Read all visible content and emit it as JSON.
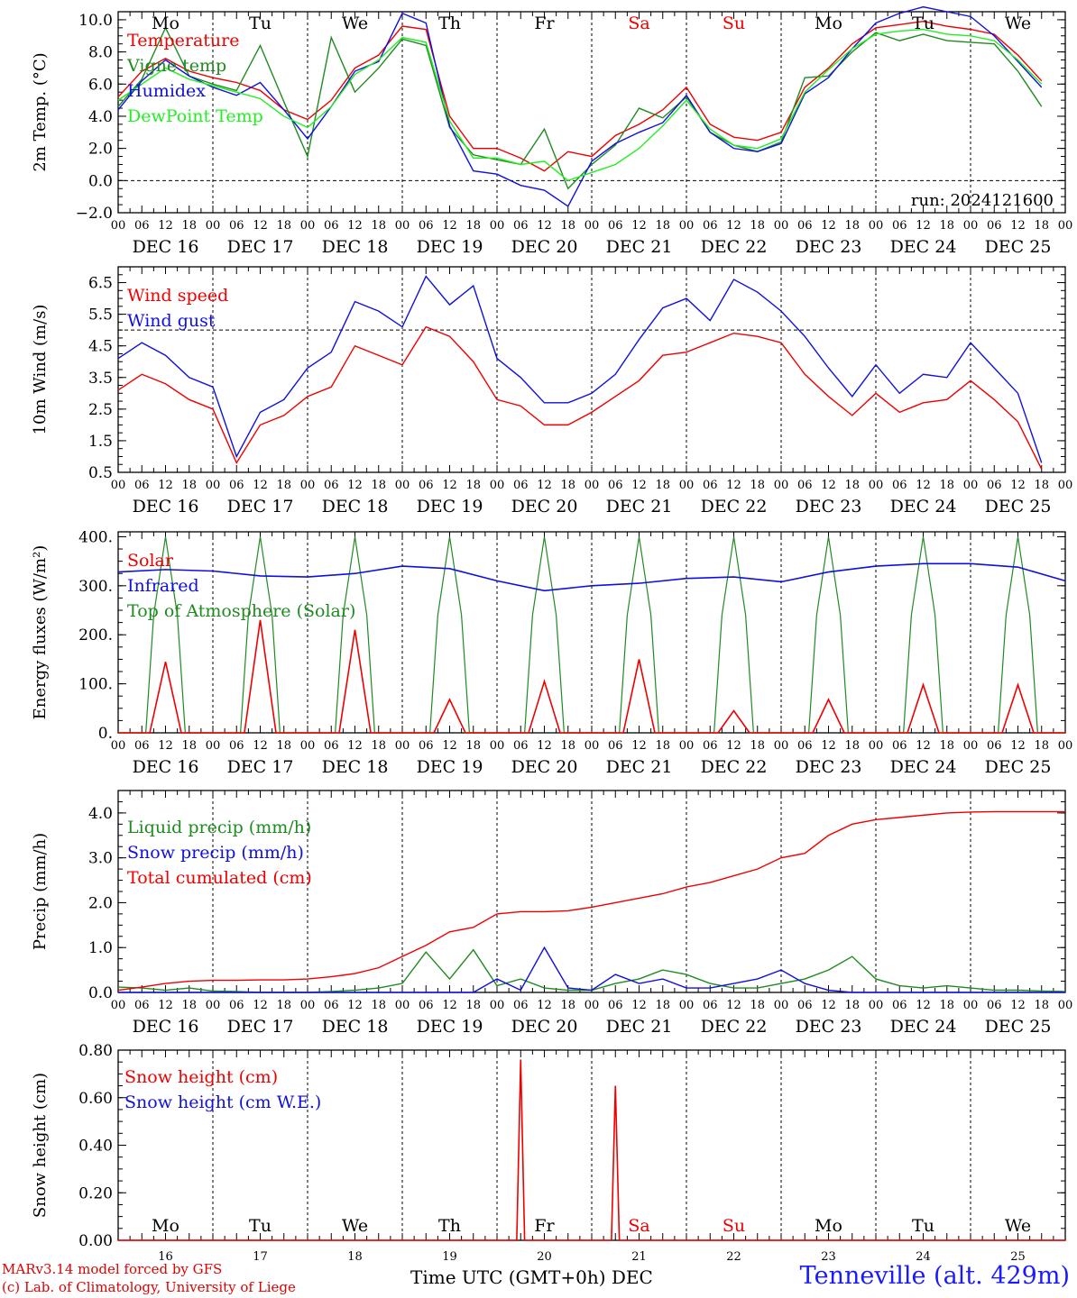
{
  "colors": {
    "red": "#ee0000",
    "green": "#1f8a1f",
    "blue": "#1010dd",
    "light_green": "#22ee22",
    "black": "#000000"
  },
  "dow": [
    "Mo",
    "Tu",
    "We",
    "Th",
    "Fr",
    "Sa",
    "Su",
    "Mo",
    "Tu",
    "We"
  ],
  "dow_colors": [
    "#000000",
    "#000000",
    "#000000",
    "#000000",
    "#000000",
    "#ee0000",
    "#ee0000",
    "#000000",
    "#000000",
    "#000000"
  ],
  "dates": [
    "DEC 16",
    "DEC 17",
    "DEC 18",
    "DEC 19",
    "DEC 20",
    "DEC 21",
    "DEC 22",
    "DEC 23",
    "DEC 24",
    "DEC 25"
  ],
  "day_numbers": [
    "16",
    "17",
    "18",
    "19",
    "20",
    "21",
    "22",
    "23",
    "24",
    "25"
  ],
  "hour_ticks": [
    "00",
    "06",
    "12",
    "18"
  ],
  "footer": {
    "credit_line1": "MARv3.14 model forced by GFS",
    "credit_line2": "(c) Lab. of Climatology, University of Liege",
    "xaxis_title": "Time UTC (GMT+0h) DEC",
    "station": "Tenneville (alt. 429m)"
  },
  "chart_data": [
    {
      "type": "line",
      "ylabel": "2m Temp. (°C)",
      "ylim": [
        -2,
        10.5
      ],
      "yticks": [
        "−2.0",
        "0.0",
        "2.0",
        "4.0",
        "6.0",
        "8.0",
        "10.0"
      ],
      "ytick_values": [
        -2,
        0,
        2,
        4,
        6,
        8,
        10
      ],
      "ref_line": 0,
      "run_label": "run: 2024121600",
      "x_hours": [
        0,
        6,
        12,
        18,
        24,
        30,
        36,
        42,
        48,
        54,
        60,
        66,
        72,
        78,
        84,
        90,
        96,
        102,
        108,
        114,
        120,
        126,
        132,
        138,
        144,
        150,
        156,
        162,
        168,
        174,
        180,
        186,
        192,
        198,
        204,
        210,
        216,
        222,
        228,
        234
      ],
      "series": [
        {
          "name": "Temperature",
          "color": "#ee0000",
          "values": [
            5.2,
            6.8,
            7.6,
            6.8,
            6.4,
            6.1,
            5.6,
            4.4,
            3.8,
            5.0,
            7.0,
            7.8,
            9.6,
            9.4,
            4.0,
            2.0,
            2.0,
            1.4,
            0.6,
            1.8,
            1.5,
            2.8,
            3.5,
            4.4,
            5.8,
            3.5,
            2.7,
            2.5,
            3.0,
            5.8,
            7.0,
            8.5,
            9.5,
            9.7,
            9.9,
            9.6,
            9.4,
            9.1,
            7.8,
            6.2
          ]
        },
        {
          "name": "Vigne temp",
          "color": "#1f8a1f",
          "values": [
            4.6,
            6.3,
            9.5,
            6.5,
            6.0,
            5.6,
            8.4,
            4.9,
            1.5,
            8.9,
            5.5,
            7.0,
            8.8,
            8.4,
            3.3,
            1.6,
            1.3,
            1.0,
            3.2,
            -0.5,
            1.0,
            2.2,
            4.5,
            3.9,
            5.2,
            3.0,
            2.2,
            1.8,
            2.4,
            6.4,
            6.5,
            8.0,
            9.2,
            8.7,
            9.1,
            8.7,
            8.6,
            8.5,
            6.8,
            4.6
          ]
        },
        {
          "name": "Humidex",
          "color": "#1010dd",
          "values": [
            4.4,
            6.2,
            7.5,
            6.5,
            5.8,
            5.3,
            6.1,
            4.4,
            2.6,
            4.6,
            6.8,
            7.4,
            10.4,
            9.8,
            3.4,
            0.6,
            0.4,
            -0.3,
            -0.6,
            -1.6,
            1.2,
            2.3,
            3.0,
            3.6,
            5.3,
            3.0,
            2.0,
            1.8,
            2.3,
            5.4,
            6.4,
            8.2,
            9.8,
            10.4,
            10.8,
            10.5,
            10.2,
            9.0,
            7.4,
            5.8
          ]
        },
        {
          "name": "DewPoint Temp",
          "color": "#22ee22",
          "values": [
            5.0,
            6.0,
            7.0,
            6.3,
            5.9,
            5.5,
            5.1,
            4.0,
            3.3,
            4.6,
            6.6,
            7.5,
            8.9,
            8.6,
            3.7,
            1.4,
            1.4,
            1.0,
            1.2,
            0.0,
            0.5,
            1.0,
            2.0,
            3.4,
            5.0,
            3.2,
            2.2,
            2.0,
            2.6,
            5.5,
            6.9,
            8.2,
            9.1,
            9.3,
            9.4,
            9.1,
            9.0,
            8.7,
            7.5,
            6.0
          ]
        }
      ]
    },
    {
      "type": "line",
      "ylabel": "10m Wind (m/s)",
      "ylim": [
        0.5,
        7
      ],
      "yticks": [
        "0.5",
        "1.5",
        "2.5",
        "3.5",
        "4.5",
        "5.5",
        "6.5"
      ],
      "ytick_values": [
        0.5,
        1.5,
        2.5,
        3.5,
        4.5,
        5.5,
        6.5
      ],
      "ref_line": 5,
      "x_hours": [
        0,
        6,
        12,
        18,
        24,
        30,
        36,
        42,
        48,
        54,
        60,
        66,
        72,
        78,
        84,
        90,
        96,
        102,
        108,
        114,
        120,
        126,
        132,
        138,
        144,
        150,
        156,
        162,
        168,
        174,
        180,
        186,
        192,
        198,
        204,
        210,
        216,
        222,
        228,
        234
      ],
      "series": [
        {
          "name": "Wind speed",
          "color": "#ee0000",
          "values": [
            3.1,
            3.6,
            3.3,
            2.8,
            2.5,
            0.8,
            2.0,
            2.3,
            2.9,
            3.2,
            4.5,
            4.2,
            3.9,
            5.1,
            4.8,
            4.0,
            2.8,
            2.6,
            2.0,
            2.0,
            2.4,
            2.9,
            3.4,
            4.2,
            4.3,
            4.6,
            4.9,
            4.8,
            4.6,
            3.6,
            2.9,
            2.3,
            3.0,
            2.4,
            2.7,
            2.8,
            3.4,
            2.8,
            2.1,
            0.6
          ]
        },
        {
          "name": "Wind gust",
          "color": "#1010dd",
          "values": [
            4.1,
            4.6,
            4.2,
            3.5,
            3.2,
            1.0,
            2.4,
            2.8,
            3.8,
            4.3,
            5.9,
            5.6,
            5.1,
            6.7,
            5.8,
            6.4,
            4.1,
            3.5,
            2.7,
            2.7,
            3.0,
            3.6,
            4.7,
            5.7,
            6.0,
            5.3,
            6.6,
            6.2,
            5.6,
            4.8,
            3.8,
            2.9,
            3.9,
            3.0,
            3.6,
            3.5,
            4.6,
            3.8,
            3.0,
            0.8
          ]
        }
      ]
    },
    {
      "type": "line",
      "ylabel": "Energy fluxes (W/m²)",
      "ylim": [
        0,
        410
      ],
      "yticks": [
        "0.",
        "100.",
        "200.",
        "300.",
        "400."
      ],
      "ytick_values": [
        0,
        100,
        200,
        300,
        400
      ],
      "daily_solar_peak": [
        145,
        230,
        210,
        68,
        105,
        150,
        45,
        68,
        98,
        98
      ],
      "daily_toa_peak": [
        400,
        400,
        400,
        400,
        400,
        400,
        400,
        400,
        400,
        400
      ],
      "x_hours": [
        0,
        12,
        24,
        36,
        48,
        60,
        72,
        84,
        96,
        108,
        120,
        132,
        144,
        156,
        168,
        180,
        192,
        204,
        216,
        228,
        240
      ],
      "series": [
        {
          "name": "Solar",
          "color": "#ee0000"
        },
        {
          "name": "Infrared",
          "color": "#1010dd",
          "values": [
            328,
            333,
            330,
            320,
            318,
            325,
            340,
            335,
            310,
            290,
            300,
            305,
            315,
            318,
            308,
            328,
            340,
            345,
            345,
            338,
            310
          ]
        },
        {
          "name": "Top of Atmosphere (Solar)",
          "color": "#1f8a1f"
        }
      ]
    },
    {
      "type": "line",
      "ylabel": "Precip (mm/h)",
      "ylim": [
        0,
        4.5
      ],
      "yticks": [
        "0.0",
        "1.0",
        "2.0",
        "3.0",
        "4.0"
      ],
      "ytick_values": [
        0,
        1,
        2,
        3,
        4
      ],
      "x_hours": [
        0,
        6,
        12,
        18,
        24,
        30,
        36,
        42,
        48,
        54,
        60,
        66,
        72,
        78,
        84,
        90,
        96,
        102,
        108,
        114,
        120,
        126,
        132,
        138,
        144,
        150,
        156,
        162,
        168,
        174,
        180,
        186,
        192,
        198,
        204,
        210,
        216,
        222,
        228,
        234,
        240
      ],
      "series": [
        {
          "name": "Liquid precip (mm/h)",
          "color": "#1f8a1f",
          "values": [
            0.12,
            0.1,
            0.05,
            0.1,
            0.03,
            0.02,
            0.0,
            0.0,
            0.0,
            0.02,
            0.05,
            0.1,
            0.2,
            0.9,
            0.3,
            0.95,
            0.15,
            0.3,
            0.1,
            0.05,
            0.05,
            0.2,
            0.3,
            0.5,
            0.4,
            0.2,
            0.1,
            0.1,
            0.2,
            0.3,
            0.5,
            0.8,
            0.3,
            0.15,
            0.1,
            0.15,
            0.1,
            0.05,
            0.05,
            0.03,
            0.02
          ]
        },
        {
          "name": "Snow precip (mm/h)",
          "color": "#1010dd",
          "values": [
            0,
            0,
            0,
            0,
            0,
            0,
            0,
            0,
            0,
            0,
            0,
            0,
            0,
            0,
            0,
            0,
            0.3,
            0.05,
            1.0,
            0.1,
            0.05,
            0.4,
            0.2,
            0.3,
            0.1,
            0.1,
            0.2,
            0.3,
            0.5,
            0.2,
            0.05,
            0,
            0,
            0,
            0,
            0,
            0,
            0,
            0,
            0,
            0
          ]
        },
        {
          "name": "Total cumulated (cm)",
          "color": "#ee0000",
          "values": [
            0.05,
            0.12,
            0.2,
            0.25,
            0.27,
            0.27,
            0.28,
            0.28,
            0.3,
            0.35,
            0.42,
            0.55,
            0.8,
            1.05,
            1.35,
            1.45,
            1.75,
            1.8,
            1.8,
            1.82,
            1.9,
            2.0,
            2.1,
            2.2,
            2.35,
            2.45,
            2.6,
            2.75,
            3.0,
            3.1,
            3.5,
            3.75,
            3.85,
            3.9,
            3.95,
            4.0,
            4.02,
            4.03,
            4.03,
            4.03,
            4.03
          ]
        }
      ]
    },
    {
      "type": "line",
      "ylabel": "Snow height (cm)",
      "ylim": [
        0,
        0.8
      ],
      "yticks": [
        "0.00",
        "0.20",
        "0.40",
        "0.60",
        "0.80"
      ],
      "ytick_values": [
        0,
        0.2,
        0.4,
        0.6,
        0.8
      ],
      "spikes": [
        {
          "hour": 102,
          "value": 0.76
        },
        {
          "hour": 126,
          "value": 0.65
        }
      ],
      "series": [
        {
          "name": "Snow height (cm)",
          "color": "#ee0000"
        },
        {
          "name": "Snow height (cm W.E.)",
          "color": "#1010dd"
        }
      ]
    }
  ]
}
